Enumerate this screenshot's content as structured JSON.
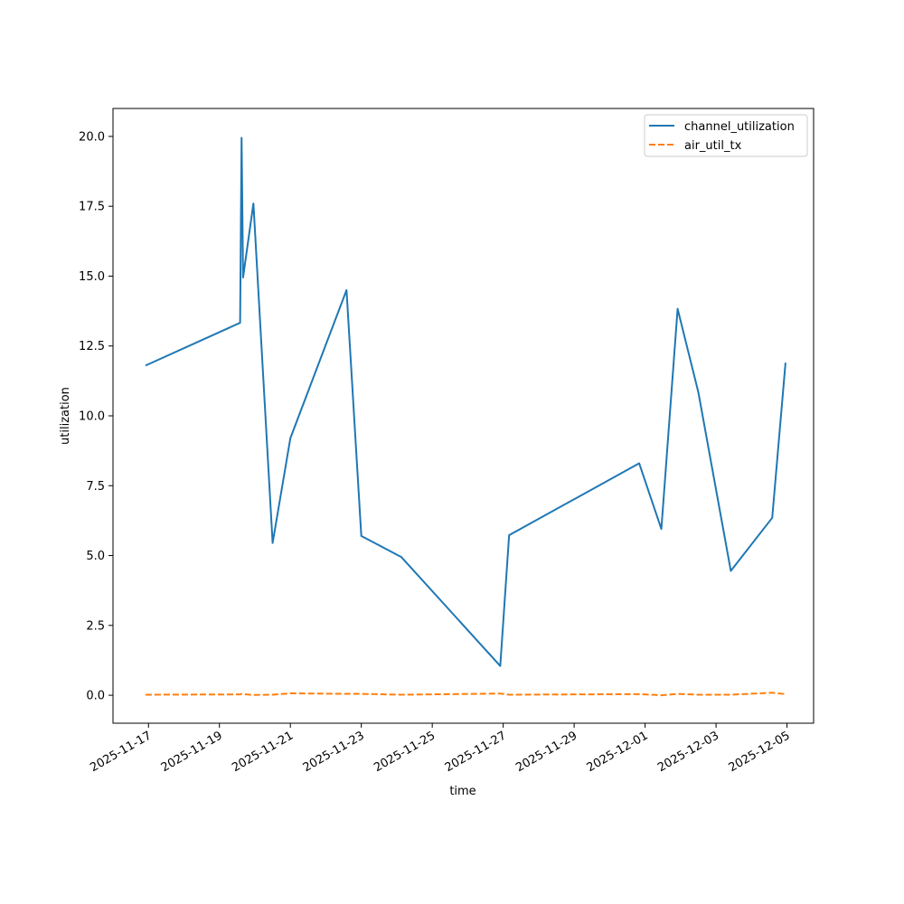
{
  "chart_data": {
    "type": "line",
    "xlabel": "time",
    "ylabel": "utilization",
    "x_is_date": true,
    "xlim": [
      "2025-11-16T00:00",
      "2025-12-05T18:00"
    ],
    "ylim": [
      -1.0,
      21.0
    ],
    "grid": false,
    "legend_position": "top-right",
    "x_ticks": [
      "2025-11-17",
      "2025-11-19",
      "2025-11-21",
      "2025-11-23",
      "2025-11-25",
      "2025-11-27",
      "2025-11-29",
      "2025-12-01",
      "2025-12-03",
      "2025-12-05"
    ],
    "y_ticks": [
      "0.0",
      "2.5",
      "5.0",
      "7.5",
      "10.0",
      "12.5",
      "15.0",
      "17.5",
      "20.0"
    ],
    "series": [
      {
        "name": "channel_utilization",
        "color": "#1f77b4",
        "style": "solid",
        "points": [
          {
            "x": "2025-11-16T22:00",
            "y": 11.8
          },
          {
            "x": "2025-11-19T14:00",
            "y": 13.33
          },
          {
            "x": "2025-11-19T15:00",
            "y": 19.95
          },
          {
            "x": "2025-11-19T16:00",
            "y": 14.95
          },
          {
            "x": "2025-11-19T23:00",
            "y": 17.6
          },
          {
            "x": "2025-11-20T12:00",
            "y": 5.45
          },
          {
            "x": "2025-11-21T00:00",
            "y": 9.2
          },
          {
            "x": "2025-11-22T14:00",
            "y": 14.5
          },
          {
            "x": "2025-11-23T00:00",
            "y": 5.7
          },
          {
            "x": "2025-11-24T03:00",
            "y": 4.95
          },
          {
            "x": "2025-11-26T22:00",
            "y": 1.05
          },
          {
            "x": "2025-11-27T04:00",
            "y": 5.73
          },
          {
            "x": "2025-11-30T20:00",
            "y": 8.3
          },
          {
            "x": "2025-12-01T11:00",
            "y": 5.95
          },
          {
            "x": "2025-12-01T22:00",
            "y": 13.83
          },
          {
            "x": "2025-12-02T12:00",
            "y": 10.85
          },
          {
            "x": "2025-12-03T10:00",
            "y": 4.45
          },
          {
            "x": "2025-12-04T14:00",
            "y": 6.35
          },
          {
            "x": "2025-12-04T23:00",
            "y": 11.9
          }
        ]
      },
      {
        "name": "air_util_tx",
        "color": "#ff7f0e",
        "style": "dashed",
        "points": [
          {
            "x": "2025-11-16T22:00",
            "y": 0.02
          },
          {
            "x": "2025-11-19T14:00",
            "y": 0.03
          },
          {
            "x": "2025-11-19T15:00",
            "y": 0.05
          },
          {
            "x": "2025-11-19T16:00",
            "y": 0.04
          },
          {
            "x": "2025-11-19T23:00",
            "y": 0.01
          },
          {
            "x": "2025-11-20T12:00",
            "y": 0.02
          },
          {
            "x": "2025-11-21T00:00",
            "y": 0.07
          },
          {
            "x": "2025-11-22T14:00",
            "y": 0.05
          },
          {
            "x": "2025-11-23T00:00",
            "y": 0.05
          },
          {
            "x": "2025-11-24T03:00",
            "y": 0.02
          },
          {
            "x": "2025-11-26T22:00",
            "y": 0.06
          },
          {
            "x": "2025-11-27T04:00",
            "y": 0.02
          },
          {
            "x": "2025-11-30T20:00",
            "y": 0.04
          },
          {
            "x": "2025-12-01T11:00",
            "y": 0.0
          },
          {
            "x": "2025-12-01T22:00",
            "y": 0.05
          },
          {
            "x": "2025-12-02T12:00",
            "y": 0.02
          },
          {
            "x": "2025-12-03T10:00",
            "y": 0.02
          },
          {
            "x": "2025-12-04T14:00",
            "y": 0.09
          },
          {
            "x": "2025-12-04T23:00",
            "y": 0.04
          }
        ]
      }
    ]
  }
}
